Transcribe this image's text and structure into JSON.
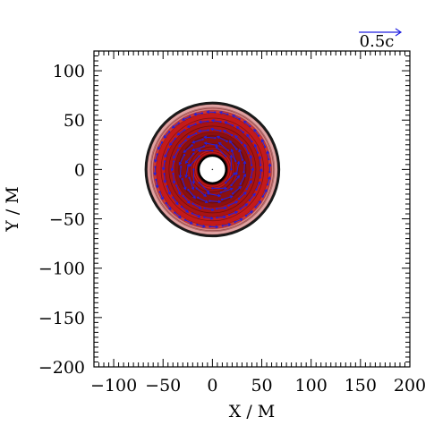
{
  "chart_data": {
    "type": "heatmap",
    "title": "",
    "xlabel": "X / M",
    "ylabel": "Y / M",
    "xlim": [
      -120,
      200
    ],
    "ylim": [
      -200,
      120
    ],
    "x_ticks": [
      -100,
      -50,
      0,
      50,
      100,
      150,
      200
    ],
    "y_ticks": [
      -200,
      -150,
      -100,
      -50,
      0,
      50,
      100
    ],
    "x_tick_labels": [
      "−100",
      "−50",
      "0",
      "50",
      "100",
      "150",
      "200"
    ],
    "y_tick_labels": [
      "−200",
      "−150",
      "−100",
      "−50",
      "0",
      "50",
      "100"
    ],
    "minor_tick_step": 5,
    "disk": {
      "center": [
        0,
        0
      ],
      "inner_radius": 14,
      "outer_radius": 68,
      "contour_levels": [
        {
          "radius": 68,
          "color": "#1a1a1a"
        },
        {
          "radius": 66,
          "color": "#e0a2a2"
        },
        {
          "radius": 63,
          "color": "#d98080"
        },
        {
          "radius": 60,
          "color": "#cc3535"
        },
        {
          "radius": 57,
          "color": "#c41a1a"
        },
        {
          "radius": 48,
          "color": "#a81313"
        },
        {
          "radius": 38,
          "color": "#8a1010"
        },
        {
          "radius": 26,
          "color": "#9b1212"
        },
        {
          "radius": 20,
          "color": "#c01818"
        },
        {
          "radius": 16,
          "color": "#7a0e0e"
        }
      ],
      "hole_color": "#ffffff",
      "hole_outline_color": "#000000"
    },
    "velocity_field": {
      "color": "#2020e0",
      "ring_radii": [
        19,
        25,
        32,
        40,
        49,
        58
      ],
      "ring_arrow_counts": [
        8,
        12,
        16,
        20,
        24,
        28
      ],
      "rotation": "counterclockwise"
    },
    "scale_arrow": {
      "label": "0.5c",
      "color": "#2020e0"
    }
  }
}
